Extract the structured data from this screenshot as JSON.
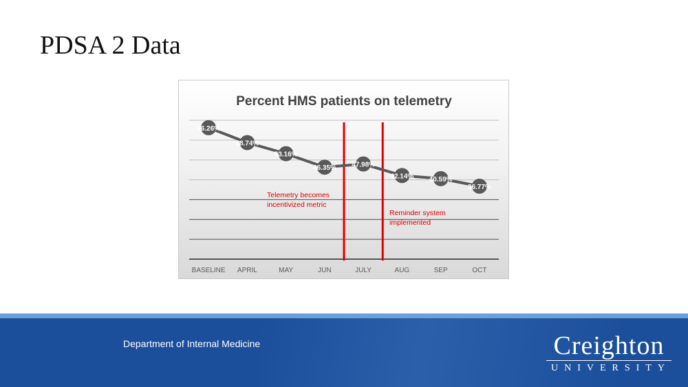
{
  "slide": {
    "title": "PDSA 2 Data"
  },
  "chart_data": {
    "type": "line",
    "title": "Percent HMS patients on telemetry",
    "categories": [
      "BASELINE",
      "APRIL",
      "MAY",
      "JUN",
      "JULY",
      "AUG",
      "SEP",
      "OCT"
    ],
    "series": [
      {
        "name": "Percent HMS patients on telemetry",
        "values": [
          66.26,
          58.74,
          53.16,
          46.35,
          47.98,
          42.14,
          40.59,
          36.77
        ],
        "labels": [
          "66.26%",
          "58.74%",
          "53.16%",
          "46.35%",
          "47.98%",
          "42.14%",
          "40.59%",
          "36.77%"
        ]
      }
    ],
    "ylim": [
      0,
      70
    ],
    "gridlines": 7,
    "line_color": "#595959",
    "annotation_color": "#e00000",
    "vertical_markers": [
      {
        "between": [
          "JUN",
          "JULY"
        ],
        "text_lines": [
          "Telemetry becomes",
          "incentivized metric"
        ]
      },
      {
        "between": [
          "JULY",
          "AUG"
        ],
        "text_lines": [
          "Reminder system",
          "implemented"
        ]
      }
    ]
  },
  "footer": {
    "department": "Department of Internal Medicine",
    "logo_main": "Creighton",
    "logo_sub": "UNIVERSITY",
    "bar_color": "#1b4f9c",
    "stripe_color": "#6a9fd8"
  }
}
